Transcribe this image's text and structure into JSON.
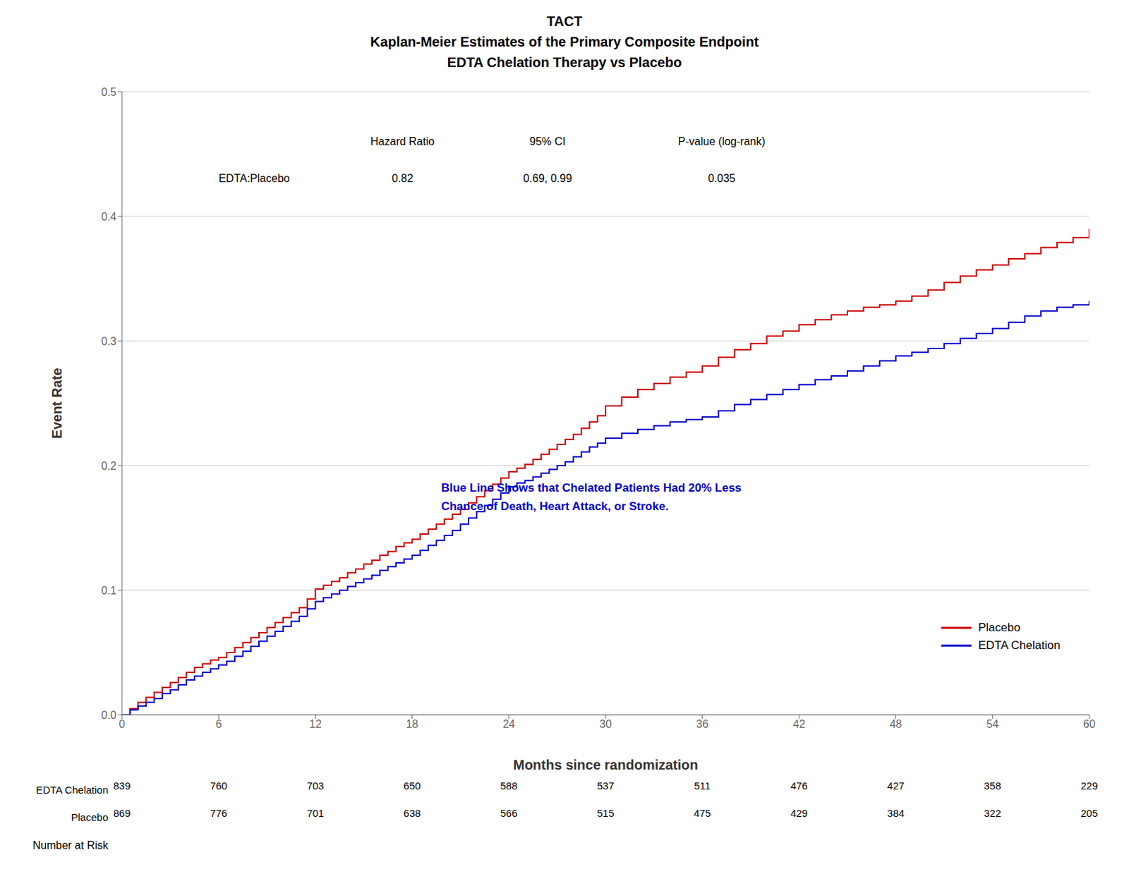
{
  "chart_data": {
    "type": "line",
    "line_style": "step",
    "title": [
      "TACT",
      "Kaplan-Meier Estimates of the Primary Composite Endpoint",
      "EDTA Chelation Therapy vs Placebo"
    ],
    "x_label": "Months since randomization",
    "y_label": "Event Rate",
    "xlim": [
      0,
      60
    ],
    "ylim": [
      0.0,
      0.5
    ],
    "xticks": [
      0,
      6,
      12,
      18,
      24,
      30,
      36,
      42,
      48,
      54,
      60
    ],
    "yticks": [
      {
        "value": 0.0,
        "label": "0.0"
      },
      0.1,
      0.2,
      0.3,
      0.4,
      0.5
    ],
    "grid": "y",
    "legend": "lower right",
    "x": [
      0.0,
      0.5,
      1.0,
      1.5,
      2.0,
      2.5,
      3.0,
      3.5,
      4.0,
      4.5,
      5.0,
      5.5,
      6.0,
      6.5,
      7.0,
      7.5,
      8.0,
      8.5,
      9.0,
      9.5,
      10.0,
      10.5,
      11.0,
      11.5,
      12.0,
      12.5,
      13.0,
      13.5,
      14.0,
      14.5,
      15.0,
      15.5,
      16.0,
      16.5,
      17.0,
      17.5,
      18.0,
      18.5,
      19.0,
      19.5,
      20.0,
      20.5,
      21.0,
      21.5,
      22.0,
      22.5,
      23.0,
      23.5,
      24.0,
      24.5,
      25.0,
      25.5,
      26.0,
      26.5,
      27.0,
      27.5,
      28.0,
      28.5,
      29.0,
      29.5,
      30.0,
      31.0,
      32.0,
      33.0,
      34.0,
      35.0,
      36.0,
      37.0,
      38.0,
      39.0,
      40.0,
      41.0,
      42.0,
      43.0,
      44.0,
      45.0,
      46.0,
      47.0,
      48.0,
      49.0,
      50.0,
      51.0,
      52.0,
      53.0,
      54.0,
      55.0,
      56.0,
      57.0,
      58.0,
      59.0,
      60.0
    ],
    "series": [
      {
        "name": "Placebo",
        "color": "#cc0000",
        "values": [
          0.0,
          0.005,
          0.01,
          0.014,
          0.018,
          0.022,
          0.026,
          0.03,
          0.034,
          0.038,
          0.041,
          0.044,
          0.046,
          0.05,
          0.054,
          0.058,
          0.062,
          0.066,
          0.07,
          0.074,
          0.078,
          0.082,
          0.086,
          0.093,
          0.101,
          0.104,
          0.107,
          0.11,
          0.114,
          0.117,
          0.121,
          0.124,
          0.128,
          0.131,
          0.135,
          0.138,
          0.141,
          0.145,
          0.149,
          0.153,
          0.157,
          0.161,
          0.165,
          0.17,
          0.175,
          0.18,
          0.185,
          0.19,
          0.195,
          0.198,
          0.201,
          0.205,
          0.209,
          0.213,
          0.217,
          0.221,
          0.225,
          0.23,
          0.235,
          0.24,
          0.248,
          0.255,
          0.261,
          0.266,
          0.271,
          0.275,
          0.28,
          0.287,
          0.293,
          0.298,
          0.304,
          0.308,
          0.313,
          0.317,
          0.321,
          0.324,
          0.327,
          0.329,
          0.332,
          0.336,
          0.341,
          0.347,
          0.352,
          0.357,
          0.361,
          0.366,
          0.37,
          0.375,
          0.379,
          0.383,
          0.39
        ]
      },
      {
        "name": "EDTA Chelation",
        "color": "#0000cc",
        "values": [
          0.0,
          0.004,
          0.007,
          0.01,
          0.013,
          0.017,
          0.02,
          0.024,
          0.028,
          0.031,
          0.034,
          0.037,
          0.04,
          0.043,
          0.047,
          0.051,
          0.055,
          0.059,
          0.063,
          0.067,
          0.071,
          0.075,
          0.079,
          0.085,
          0.091,
          0.094,
          0.097,
          0.1,
          0.103,
          0.106,
          0.109,
          0.112,
          0.116,
          0.119,
          0.122,
          0.125,
          0.128,
          0.132,
          0.136,
          0.14,
          0.144,
          0.148,
          0.153,
          0.158,
          0.163,
          0.168,
          0.173,
          0.178,
          0.183,
          0.186,
          0.188,
          0.191,
          0.194,
          0.197,
          0.2,
          0.203,
          0.207,
          0.211,
          0.215,
          0.218,
          0.222,
          0.226,
          0.229,
          0.232,
          0.235,
          0.237,
          0.239,
          0.244,
          0.249,
          0.253,
          0.257,
          0.261,
          0.265,
          0.269,
          0.272,
          0.276,
          0.28,
          0.284,
          0.288,
          0.291,
          0.294,
          0.298,
          0.302,
          0.306,
          0.31,
          0.315,
          0.32,
          0.324,
          0.327,
          0.329,
          0.332
        ]
      }
    ],
    "stats_table": {
      "columns": [
        "Hazard Ratio",
        "95% CI",
        "P-value (log-rank)"
      ],
      "rows": [
        {
          "name": "EDTA:Placebo",
          "values": [
            "0.82",
            "0.69, 0.99",
            "0.035"
          ]
        }
      ]
    },
    "annotations": [
      {
        "text": [
          "Blue Line Shows that Chelated Patients Had 20% Less",
          "Chance of Death, Heart Attack, or Stroke."
        ],
        "color": "#0000cc"
      }
    ],
    "number_at_risk": {
      "title": "Number at Risk",
      "rows": [
        {
          "name": "EDTA Chelation",
          "values": [
            839,
            760,
            703,
            650,
            588,
            537,
            511,
            476,
            427,
            358,
            229
          ]
        },
        {
          "name": "Placebo",
          "values": [
            869,
            776,
            701,
            638,
            566,
            515,
            475,
            429,
            384,
            322,
            205
          ]
        }
      ]
    }
  }
}
